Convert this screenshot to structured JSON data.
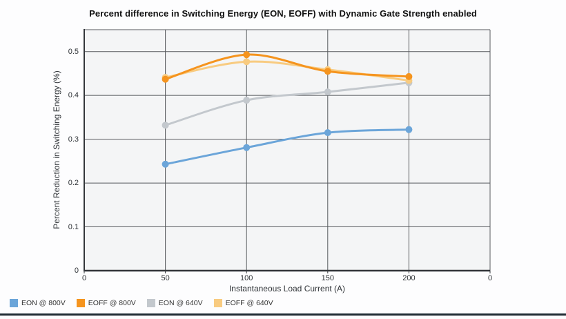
{
  "chart_data": {
    "type": "line",
    "title": "Percent difference in Switching Energy (EON, EOFF) with Dynamic Gate Strength enabled",
    "xlabel": "Instantaneous Load Current (A)",
    "ylabel": "Percent Reduction in Switching Energy (%)",
    "x": [
      50,
      100,
      150,
      200
    ],
    "xticklabels": [
      "0",
      "50",
      "100",
      "150",
      "200",
      "0"
    ],
    "yticklabels": [
      "0",
      "0.1",
      "0.2",
      "0.3",
      "0.4",
      "0.5"
    ],
    "yticks": [
      0,
      0.1,
      0.2,
      0.3,
      0.4,
      0.5
    ],
    "ylim": [
      0,
      0.55
    ],
    "grid": true,
    "legend_position": "bottom-left",
    "series": [
      {
        "name": "EON @ 800V",
        "color": "#6BA5D9",
        "values": [
          0.243,
          0.281,
          0.315,
          0.322
        ]
      },
      {
        "name": "EOFF @ 800V",
        "color": "#F5941E",
        "values": [
          0.437,
          0.493,
          0.455,
          0.443
        ]
      },
      {
        "name": "EON @ 640V",
        "color": "#C3C8CD",
        "values": [
          0.332,
          0.389,
          0.408,
          0.429
        ]
      },
      {
        "name": "EOFF @ 640V",
        "color": "#F8CB80",
        "values": [
          0.441,
          0.477,
          0.459,
          0.434
        ]
      }
    ],
    "colors": {
      "grid": "#56595d",
      "axis": "#33363a",
      "plot_bg": "#f4f5f6",
      "tick_text": "#2e3236",
      "bottom_bar": "#1f2b33"
    }
  }
}
